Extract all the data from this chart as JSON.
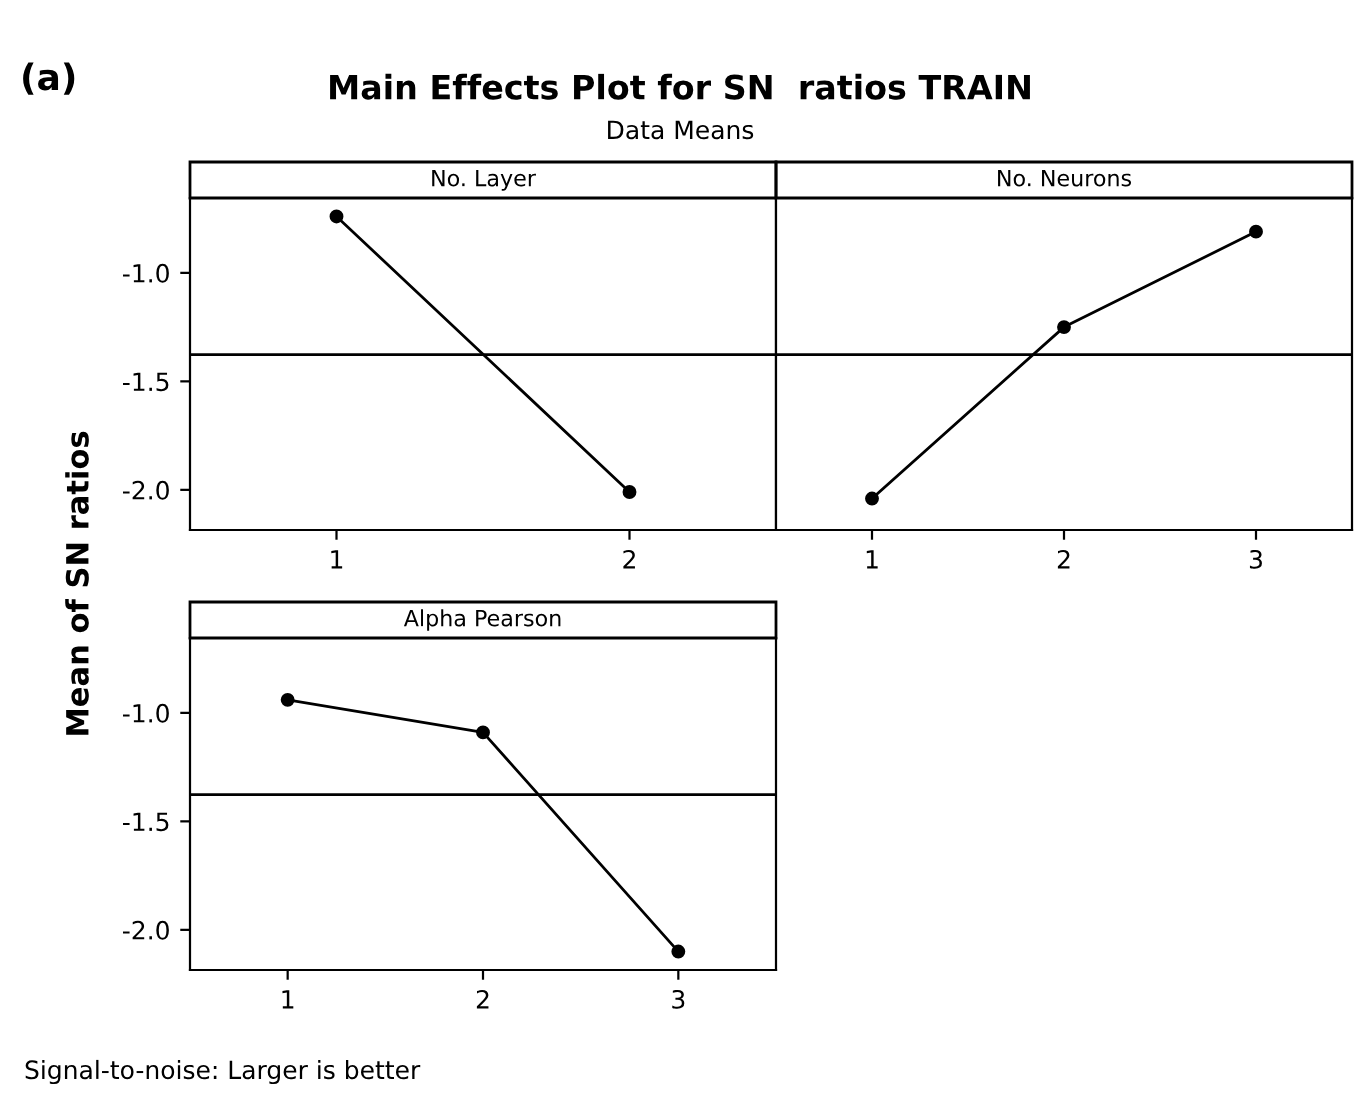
{
  "chart_data": [
    {
      "type": "line",
      "title": "No. Layer",
      "ylabel": "Mean of SN ratios",
      "x": [
        1,
        2
      ],
      "values": [
        -0.74,
        -2.01
      ],
      "color": "#000000",
      "marker": "circle",
      "line_style": "solid",
      "grid": false,
      "xlim": [
        0.5,
        2.5
      ],
      "xticks": [
        1,
        2
      ],
      "ylim": [
        -2.185,
        -0.655
      ],
      "yticks": [
        {
          "value": -1.0,
          "label": "-1.0"
        },
        {
          "value": -1.5,
          "label": "-1.5"
        },
        {
          "value": -2.0,
          "label": "-2.0"
        }
      ],
      "ref_lines": [
        {
          "axis": "y",
          "value": -1.377
        }
      ],
      "annotations": [
        "(a)",
        "Main Effects Plot for SN  ratios TRAIN",
        "Data Means",
        "Signal-to-noise: Larger is better"
      ]
    },
    {
      "type": "line",
      "title": "No. Neurons",
      "x": [
        1,
        2,
        3
      ],
      "values": [
        -2.04,
        -1.25,
        -0.81
      ],
      "color": "#000000",
      "marker": "circle",
      "line_style": "solid",
      "grid": false,
      "xlim": [
        0.5,
        3.5
      ],
      "xticks": [
        1,
        2,
        3
      ],
      "ylim": [
        -2.185,
        -0.655
      ],
      "tick_labels": "x",
      "ref_lines": [
        {
          "axis": "y",
          "value": -1.377
        }
      ]
    },
    {
      "type": "line",
      "title": "Alpha Pearson",
      "x": [
        1,
        2,
        3
      ],
      "values": [
        -0.94,
        -1.09,
        -2.1
      ],
      "color": "#000000",
      "marker": "circle",
      "line_style": "solid",
      "grid": false,
      "xlim": [
        0.5,
        3.5
      ],
      "xticks": [
        1,
        2,
        3
      ],
      "ylim": [
        -2.185,
        -0.655
      ],
      "yticks": [
        {
          "value": -1.0,
          "label": "-1.0"
        },
        {
          "value": -1.5,
          "label": "-1.5"
        },
        {
          "value": -2.0,
          "label": "-2.0"
        }
      ],
      "ref_lines": [
        {
          "axis": "y",
          "value": -1.377
        }
      ]
    }
  ]
}
